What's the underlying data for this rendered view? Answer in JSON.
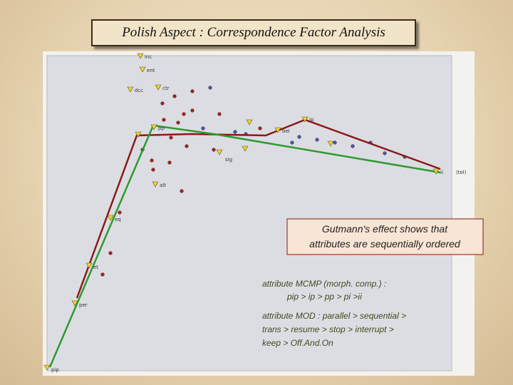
{
  "title": "Polish Aspect : Correspondence Factor Analysis",
  "plot": {
    "labels": [
      "inc",
      "ent",
      "dcc",
      "ctr",
      "ip",
      "pp",
      "sig",
      "bei",
      "ii",
      "(tel)",
      "eq",
      "et",
      "per",
      "pip",
      "alt"
    ]
  },
  "callout": [
    "Gutmann's effect shows that",
    "attributes are sequentially ordered"
  ],
  "notes": [
    "attribute MCMP (morph. comp.) :",
    "pip > ip > pp > pi >ii",
    "attribute MOD : parallel > sequential >",
    "trans > resume > stop > interrupt >",
    "keep > Off.And.On"
  ]
}
